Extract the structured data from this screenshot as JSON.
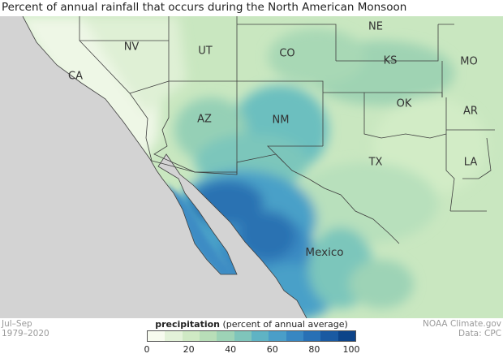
{
  "title": "Percent of annual rainfall that occurs during the North American Monsoon",
  "states": [
    {
      "abbr": "NE"
    },
    {
      "abbr": "NV"
    },
    {
      "abbr": "UT"
    },
    {
      "abbr": "CO"
    },
    {
      "abbr": "KS"
    },
    {
      "abbr": "MO"
    },
    {
      "abbr": "CA"
    },
    {
      "abbr": "OK"
    },
    {
      "abbr": "AR"
    },
    {
      "abbr": "AZ"
    },
    {
      "abbr": "NM"
    },
    {
      "abbr": "TX"
    },
    {
      "abbr": "LA"
    }
  ],
  "country_label": "Mexico",
  "footer_left": {
    "line1": "Jul–Sep",
    "line2": "1979–2020"
  },
  "footer_right": {
    "line1": "NOAA Climate.gov",
    "line2": "Data: CPC"
  },
  "legend": {
    "title_bold": "precipitation",
    "title_rest": " (percent of annual average)",
    "ticks": [
      "0",
      "20",
      "40",
      "60",
      "80",
      "100"
    ],
    "colors": [
      "#f7fbef",
      "#e3f2d9",
      "#cfe9c4",
      "#b8deb8",
      "#9dd3b6",
      "#7fc5bb",
      "#5fb3c4",
      "#4a9ec8",
      "#3887c2",
      "#2870b5",
      "#1a5aa2",
      "#0d4489"
    ]
  },
  "colors": {
    "land_background": "#c6e6be",
    "water": "#d3d3d3",
    "state_border": "#3f3f3f"
  }
}
